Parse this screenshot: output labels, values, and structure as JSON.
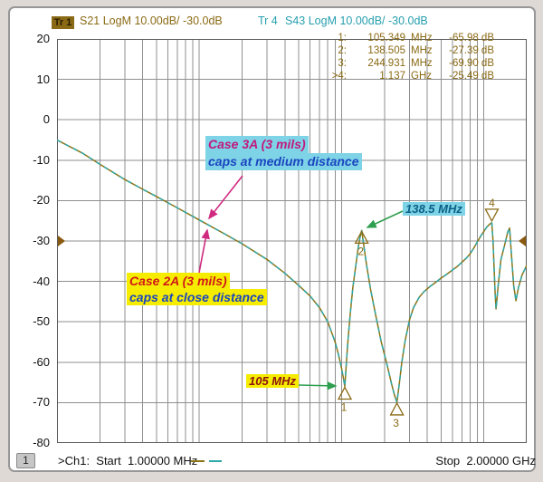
{
  "header": {
    "tr1_badge": "Tr 1",
    "tr1_settings": "S21 LogM 10.00dB/ -30.0dB",
    "tr4_badge": "Tr 4",
    "tr4_settings": "S43 LogM 10.00dB/ -30.0dB"
  },
  "marker_table": {
    "rows": [
      {
        "idx": "1:",
        "value": "105.349",
        "unit": "MHz",
        "level": "-65.98 dB"
      },
      {
        "idx": "2:",
        "value": "138.505",
        "unit": "MHz",
        "level": "-27.39 dB"
      },
      {
        "idx": "3:",
        "value": "244.931",
        "unit": "MHz",
        "level": "-69.90 dB"
      },
      {
        "idx": ">4:",
        "value": "1.137",
        "unit": "GHz",
        "level": "-25.49 dB"
      }
    ]
  },
  "y_axis": {
    "labels": [
      "20",
      "10",
      "0",
      "-10",
      "-20",
      "-30",
      "-40",
      "-50",
      "-60",
      "-70",
      "-80"
    ]
  },
  "annotations": {
    "case3a": {
      "line1": "Case 3A (3 mils)",
      "line2": "caps at medium distance",
      "bg": "#7ed3e6",
      "line1_color": "#c2187c",
      "line2_color": "#1a45c0"
    },
    "case2a": {
      "line1": "Case 2A (3 mils)",
      "line2": "caps at close distance",
      "bg": "#f6ec00",
      "line1_color": "#d01818",
      "line2_color": "#1a45c0"
    },
    "freq_138": {
      "text": "138.5 MHz",
      "bg": "#7ed3e6",
      "color": "#0a5f86"
    },
    "freq_105": {
      "text": "105 MHz",
      "bg": "#f6ec00",
      "color": "#8a1111"
    }
  },
  "footer": {
    "channel": "1",
    "start_label": ">Ch1:  Start  1.00000 MHz",
    "stop_label": "Stop  2.00000 GHz"
  },
  "colors": {
    "trace1": "#8a7414",
    "trace4": "#2fa8a8",
    "grid": "#8f8f8f",
    "plot_border": "#5a5a5a",
    "marker_text": "#8a6a14",
    "ref_arrow": "#8a5a10",
    "arrow_magenta": "#d02a80",
    "arrow_green": "#2e9e4f"
  },
  "chart_data": {
    "type": "line",
    "x_scale": "log",
    "x_unit": "MHz",
    "x_range_mhz": [
      1,
      2000
    ],
    "ylabel": "dB",
    "y_range": [
      -80,
      20
    ],
    "y_tick_step": 10,
    "grid": true,
    "reference_level_db": -30,
    "series": [
      {
        "name": "Tr 1 S21",
        "style": "solid",
        "points": [
          [
            1,
            -5
          ],
          [
            1.5,
            -8.2
          ],
          [
            2,
            -11
          ],
          [
            3,
            -14.8
          ],
          [
            4,
            -17.2
          ],
          [
            5,
            -19
          ],
          [
            7,
            -21.8
          ],
          [
            10,
            -24.8
          ],
          [
            15,
            -28.2
          ],
          [
            20,
            -30.7
          ],
          [
            30,
            -34.6
          ],
          [
            40,
            -38
          ],
          [
            50,
            -41
          ],
          [
            60,
            -43.6
          ],
          [
            70,
            -46.5
          ],
          [
            80,
            -50
          ],
          [
            90,
            -55
          ],
          [
            95,
            -58
          ],
          [
            100,
            -61.5
          ],
          [
            103,
            -64
          ],
          [
            105.349,
            -65.98
          ],
          [
            110,
            -56
          ],
          [
            115,
            -48
          ],
          [
            120,
            -41.5
          ],
          [
            126,
            -36
          ],
          [
            131,
            -31.5
          ],
          [
            135,
            -29
          ],
          [
            138.505,
            -27.39
          ],
          [
            143,
            -31
          ],
          [
            150,
            -36
          ],
          [
            160,
            -42
          ],
          [
            175,
            -49
          ],
          [
            190,
            -55
          ],
          [
            210,
            -61
          ],
          [
            225,
            -65.5
          ],
          [
            236,
            -68.3
          ],
          [
            244.931,
            -69.9
          ],
          [
            255,
            -65
          ],
          [
            265,
            -60
          ],
          [
            280,
            -54.5
          ],
          [
            300,
            -49.5
          ],
          [
            320,
            -46.5
          ],
          [
            350,
            -44
          ],
          [
            380,
            -42.5
          ],
          [
            420,
            -41.2
          ],
          [
            460,
            -40.2
          ],
          [
            500,
            -39.2
          ],
          [
            550,
            -38.2
          ],
          [
            600,
            -37.2
          ],
          [
            650,
            -36.3
          ],
          [
            700,
            -35.3
          ],
          [
            750,
            -34.3
          ],
          [
            800,
            -33.2
          ],
          [
            850,
            -31.7
          ],
          [
            900,
            -30.2
          ],
          [
            950,
            -28.8
          ],
          [
            1000,
            -27.6
          ],
          [
            1050,
            -26.5
          ],
          [
            1100,
            -25.8
          ],
          [
            1137,
            -25.49
          ],
          [
            1160,
            -30
          ],
          [
            1180,
            -37
          ],
          [
            1200,
            -43
          ],
          [
            1217,
            -46.8
          ],
          [
            1260,
            -41
          ],
          [
            1320,
            -34.5
          ],
          [
            1400,
            -31
          ],
          [
            1470,
            -27.8
          ],
          [
            1517,
            -26.8
          ],
          [
            1560,
            -33
          ],
          [
            1620,
            -41
          ],
          [
            1679,
            -44.8
          ],
          [
            1750,
            -41.5
          ],
          [
            1850,
            -38.5
          ],
          [
            2000,
            -36
          ]
        ]
      },
      {
        "name": "Tr 4 S43",
        "style": "dashed",
        "overlaps_series": "Tr 1 S21"
      }
    ],
    "markers": [
      {
        "num": "1",
        "freq_mhz": 105.349,
        "db": -65.98,
        "symbol": "triangle-up",
        "label_pos": "below"
      },
      {
        "num": "2",
        "freq_mhz": 138.505,
        "db": -27.39,
        "symbol": "triangle-up",
        "label_pos": "below"
      },
      {
        "num": "3",
        "freq_mhz": 244.931,
        "db": -69.9,
        "symbol": "triangle-up",
        "label_pos": "below"
      },
      {
        "num": "4",
        "freq_mhz": 1137,
        "db": -25.49,
        "symbol": "triangle-down",
        "label_pos": "above"
      }
    ]
  }
}
